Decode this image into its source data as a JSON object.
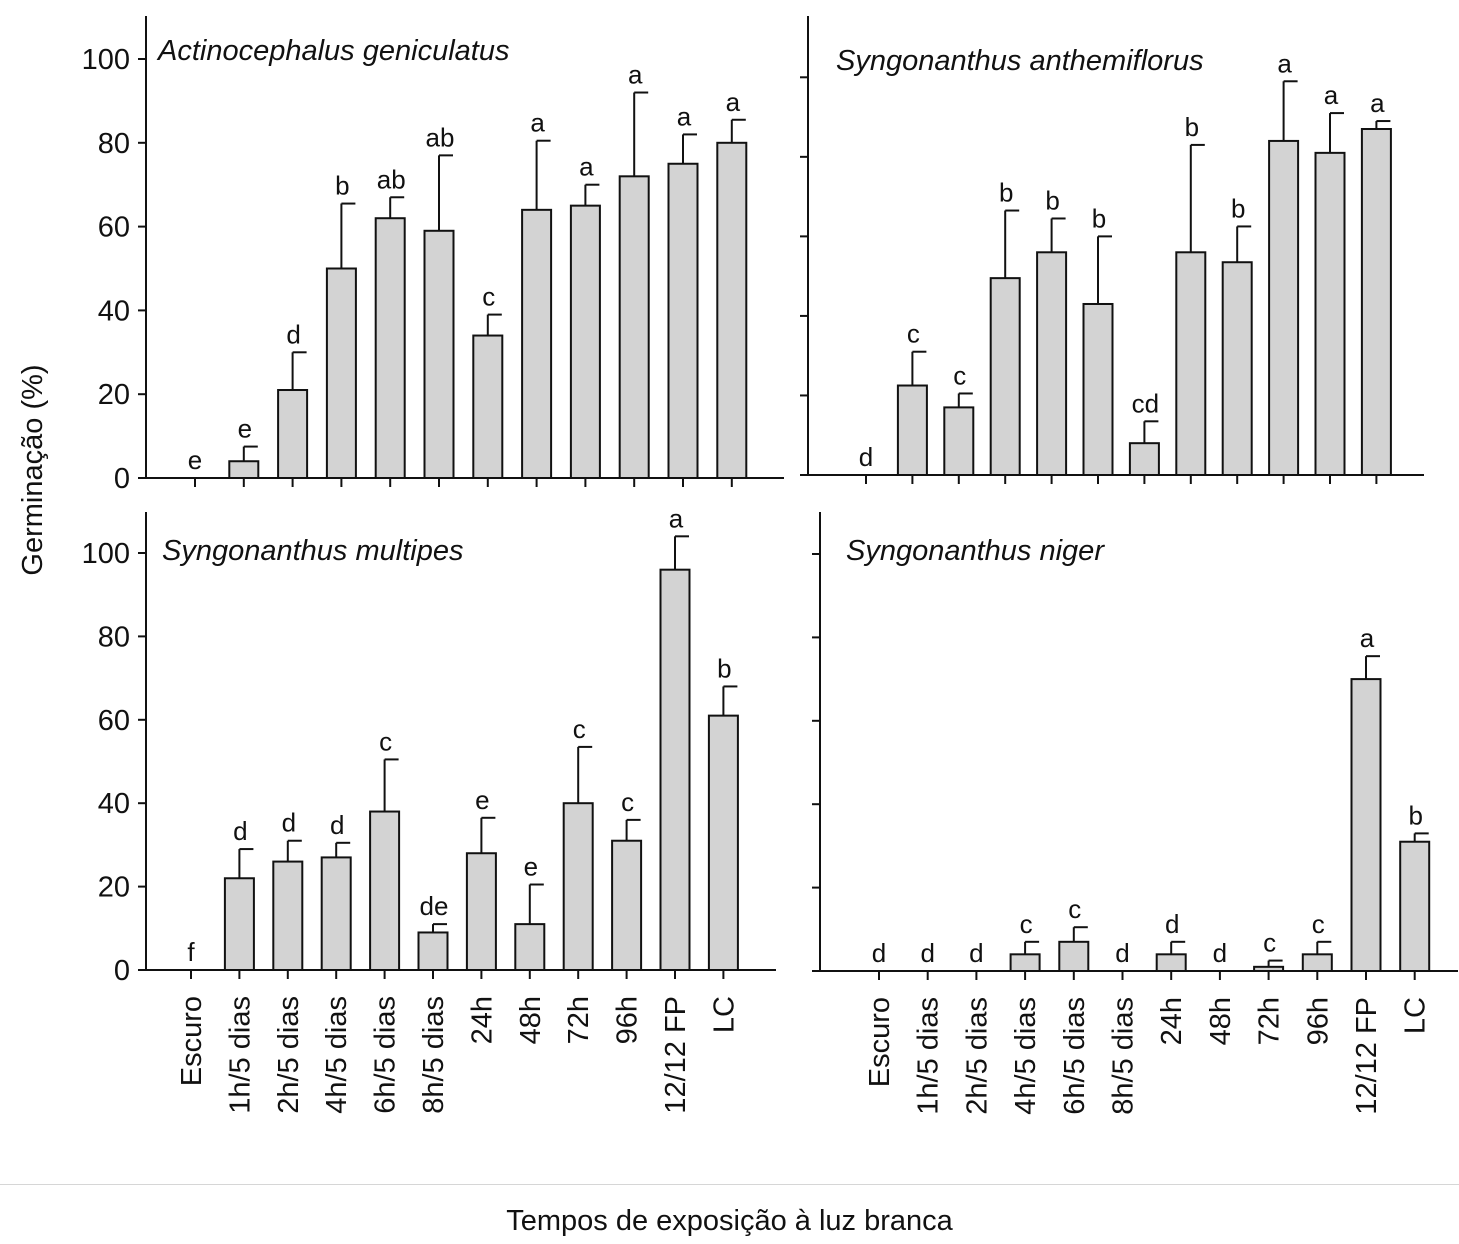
{
  "figure": {
    "ylabel": "Germinação (%)",
    "xlabel": "Tempos de exposição à luz branca",
    "y_ticks": [
      0,
      20,
      40,
      60,
      80,
      100
    ],
    "categories": [
      "Escuro",
      "1h/5 dias",
      "2h/5 dias",
      "4h/5 dias",
      "6h/5 dias",
      "8h/5 dias",
      "24h",
      "48h",
      "72h",
      "96h",
      "12/12 FP",
      "LC"
    ]
  },
  "colors": {
    "bar_fill": "#d3d3d3",
    "stroke": "#111111",
    "background": "#ffffff"
  },
  "chart_data": [
    {
      "type": "bar",
      "title": "Actinocephalus geniculatus",
      "categories": [
        "Escuro",
        "1h/5 dias",
        "2h/5 dias",
        "4h/5 dias",
        "6h/5 dias",
        "8h/5 dias",
        "24h",
        "48h",
        "72h",
        "96h",
        "12/12 FP",
        "LC"
      ],
      "values": [
        0,
        4,
        21,
        50,
        62,
        59,
        34,
        64,
        65,
        72,
        75,
        80
      ],
      "error": [
        0,
        3.5,
        9,
        15.5,
        5,
        18,
        5,
        16.5,
        5,
        20,
        7,
        5.5
      ],
      "letters": [
        "e",
        "e",
        "d",
        "b",
        "ab",
        "ab",
        "c",
        "a",
        "a",
        "a",
        "a",
        "a"
      ],
      "ylabel": "Germinação (%)",
      "ylim": [
        0,
        110
      ],
      "show_tick_labels": true
    },
    {
      "type": "bar",
      "title": "Syngonanthus anthemiflorus",
      "categories": [
        "Escuro",
        "1h/5 dias",
        "2h/5 dias",
        "4h/5 dias",
        "6h/5 dias",
        "8h/5 dias",
        "24h",
        "48h",
        "72h",
        "96h",
        "12/12 FP",
        "LC"
      ],
      "values": [
        0,
        22.5,
        17,
        49.5,
        56,
        43,
        8,
        56,
        53.5,
        84,
        81,
        87
      ],
      "error": [
        0,
        8.5,
        3.5,
        17,
        8.5,
        17,
        5.5,
        27,
        9,
        15,
        10,
        2
      ],
      "letters": [
        "d",
        "c",
        "c",
        "b",
        "b",
        "b",
        "cd",
        "b",
        "b",
        "a",
        "a",
        "a"
      ],
      "ylim": [
        0,
        110
      ],
      "show_tick_labels": false
    },
    {
      "type": "bar",
      "title": "Syngonanthus multipes",
      "categories": [
        "Escuro",
        "1h/5 dias",
        "2h/5 dias",
        "4h/5 dias",
        "6h/5 dias",
        "8h/5 dias",
        "24h",
        "48h",
        "72h",
        "96h",
        "12/12 FP",
        "LC"
      ],
      "values": [
        0,
        22,
        26,
        27,
        38,
        9,
        28,
        11,
        40,
        31,
        96,
        61
      ],
      "error": [
        0,
        7,
        5,
        3.5,
        12.5,
        2,
        8.5,
        9.5,
        13.5,
        5,
        8,
        7
      ],
      "letters": [
        "f",
        "d",
        "d",
        "d",
        "c",
        "de",
        "e",
        "e",
        "c",
        "c",
        "a",
        "b"
      ],
      "ylabel": "Germinação (%)",
      "ylim": [
        0,
        110
      ],
      "show_tick_labels": true
    },
    {
      "type": "bar",
      "title": "Syngonanthus niger",
      "categories": [
        "Escuro",
        "1h/5 dias",
        "2h/5 dias",
        "4h/5 dias",
        "6h/5 dias",
        "8h/5 dias",
        "24h",
        "48h",
        "72h",
        "96h",
        "12/12 FP",
        "LC"
      ],
      "values": [
        0,
        0,
        0,
        4,
        7,
        0,
        4,
        0,
        1,
        4,
        70,
        31
      ],
      "error": [
        0,
        0,
        0,
        3,
        3.5,
        0,
        3,
        0,
        1.5,
        3,
        5.5,
        2
      ],
      "letters": [
        "d",
        "d",
        "d",
        "c",
        "c",
        "d",
        "d",
        "d",
        "c",
        "c",
        "a",
        "b"
      ],
      "ylim": [
        0,
        110
      ],
      "show_tick_labels": false
    }
  ]
}
